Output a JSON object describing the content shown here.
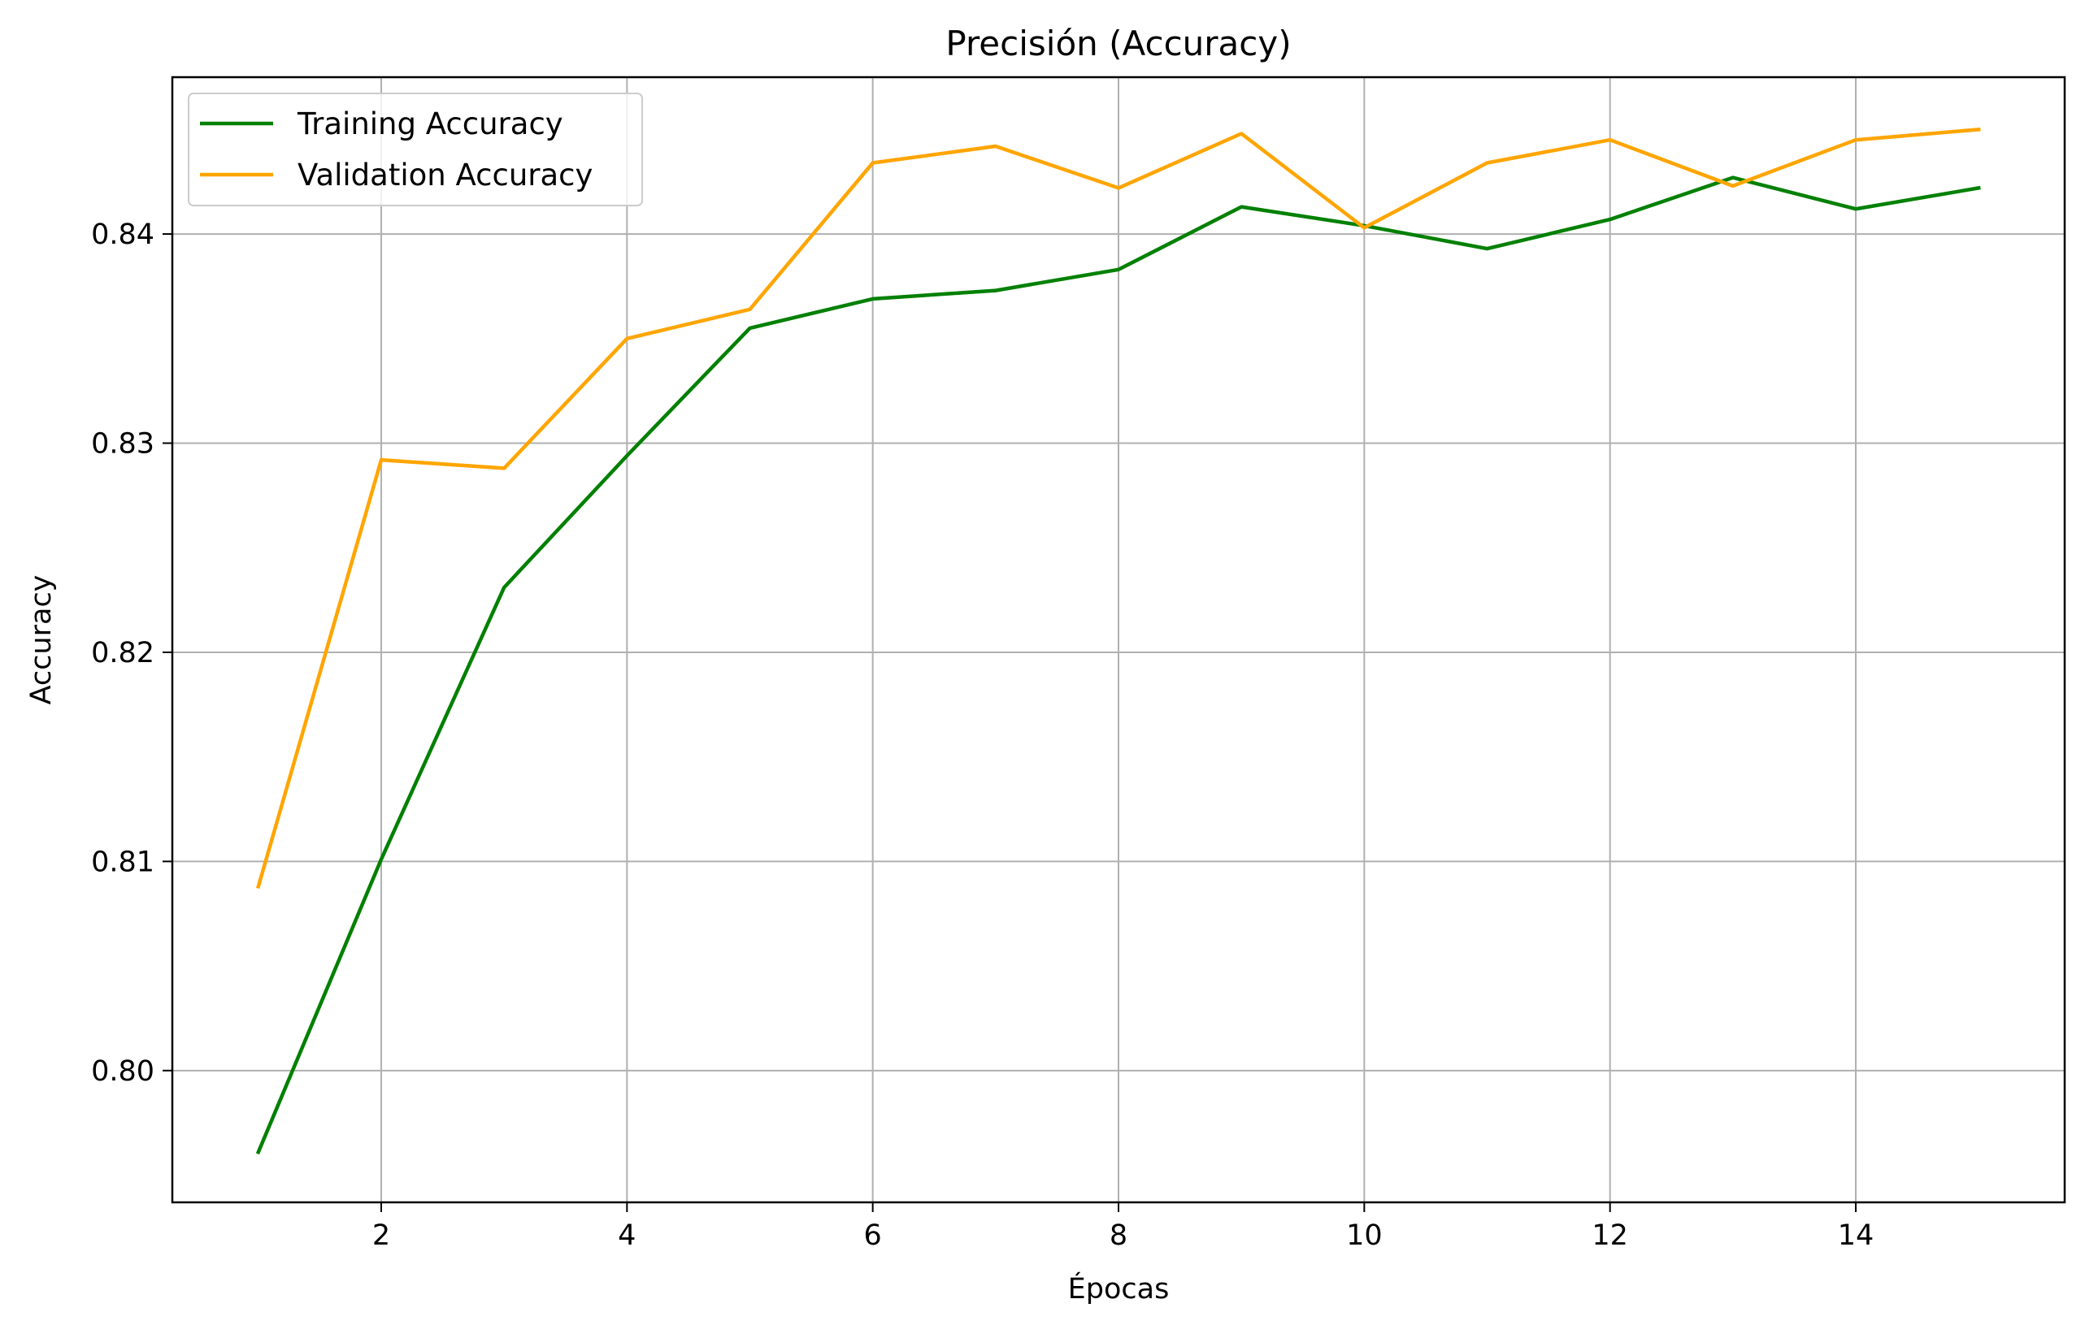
{
  "chart_data": {
    "type": "line",
    "title": "Precisión (Accuracy)",
    "xlabel": "Épocas",
    "ylabel": "Accuracy",
    "xlim": [
      0.3,
      15.7
    ],
    "ylim": [
      0.7937,
      0.8475
    ],
    "xticks": [
      2,
      4,
      6,
      8,
      10,
      12,
      14
    ],
    "xtick_labels": [
      "2",
      "4",
      "6",
      "8",
      "10",
      "12",
      "14"
    ],
    "yticks": [
      0.8,
      0.81,
      0.82,
      0.83,
      0.84
    ],
    "ytick_labels": [
      "0.80",
      "0.81",
      "0.82",
      "0.83",
      "0.84"
    ],
    "grid": true,
    "legend_position": "upper-left",
    "x": [
      1,
      2,
      3,
      4,
      5,
      6,
      7,
      8,
      9,
      10,
      11,
      12,
      13,
      14,
      15
    ],
    "series": [
      {
        "name": "Training Accuracy",
        "color": "#008000",
        "values": [
          0.7961,
          0.8101,
          0.8231,
          0.8294,
          0.8355,
          0.8369,
          0.8373,
          0.8383,
          0.8413,
          0.8404,
          0.8393,
          0.8407,
          0.8427,
          0.8412,
          0.8422
        ]
      },
      {
        "name": "Validation Accuracy",
        "color": "#FFA500",
        "values": [
          0.8088,
          0.8292,
          0.8288,
          0.835,
          0.8364,
          0.8434,
          0.8442,
          0.8422,
          0.8448,
          0.8403,
          0.8434,
          0.8445,
          0.8423,
          0.8445,
          0.845
        ]
      }
    ]
  }
}
